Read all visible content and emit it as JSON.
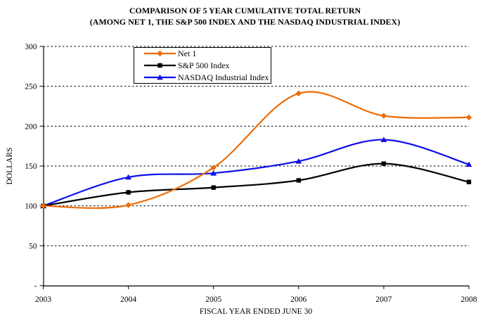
{
  "title": {
    "line1": "COMPARISON OF 5 YEAR CUMULATIVE TOTAL RETURN",
    "line2": "(AMONG NET 1, THE S&P 500 INDEX AND THE NASDAQ INDUSTRIAL INDEX)"
  },
  "chart_data": {
    "type": "line",
    "smoothed": true,
    "x": [
      "2003",
      "2004",
      "2005",
      "2006",
      "2007",
      "2008"
    ],
    "series": [
      {
        "name": "Net 1",
        "color": "#ED6C05",
        "marker": "diamond",
        "values": [
          100,
          101,
          148,
          241,
          213,
          211
        ]
      },
      {
        "name": "S&P 500 Index",
        "color": "#000000",
        "marker": "square",
        "values": [
          100,
          117,
          123,
          132,
          153,
          130
        ]
      },
      {
        "name": "NASDAQ Industrial Index",
        "color": "#0F0FE8",
        "marker": "triangle",
        "values": [
          100,
          136,
          141,
          156,
          183,
          152
        ]
      }
    ],
    "xlabel": "FISCAL YEAR ENDED JUNE 30",
    "ylabel": "DOLLARS",
    "ylim": [
      0,
      300
    ],
    "ytick_step": 50,
    "ytick_labels": [
      "-",
      "50",
      "100",
      "150",
      "200",
      "250",
      "300"
    ],
    "grid": {
      "axis": "y",
      "style": "dashed",
      "color": "#000000"
    },
    "legend": {
      "position": "top-inside",
      "border_color": "#000000",
      "background": "#FFFFFF"
    }
  }
}
